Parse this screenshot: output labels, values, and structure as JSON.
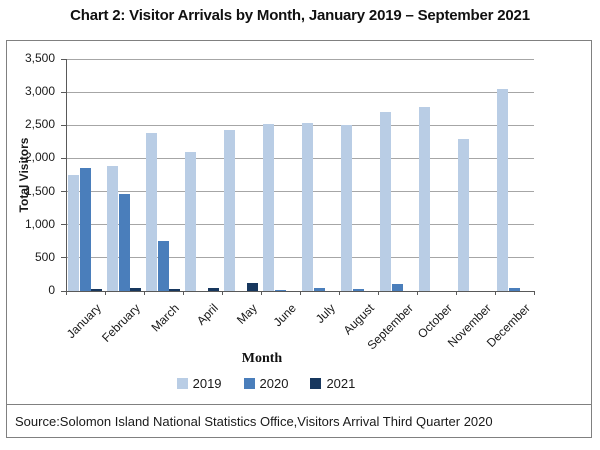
{
  "title": "Chart 2: Visitor Arrivals by Month, January 2019 – September 2021",
  "source": "Source:Solomon Island National Statistics Office,Visitors Arrival Third Quarter 2020",
  "colors": {
    "series_2019": "#b9cde5",
    "series_2020": "#4a7ebb",
    "series_2021": "#17375e",
    "gridline": "#a6a6a6",
    "axis": "#595959",
    "border": "#808080"
  },
  "chart_data": {
    "type": "bar",
    "title": "Chart 2: Visitor Arrivals by Month, January 2019 – September 2021",
    "xlabel": "Month",
    "ylabel": "Total Visitors",
    "ylim": [
      0,
      3500
    ],
    "ytick_step": 500,
    "ytick_labels": [
      "0",
      "500",
      "1,000",
      "1,500",
      "2,000",
      "2,500",
      "3,000",
      "3,500"
    ],
    "grid": true,
    "legend_position": "bottom",
    "categories": [
      "January",
      "February",
      "March",
      "April",
      "May",
      "June",
      "July",
      "August",
      "September",
      "October",
      "November",
      "December"
    ],
    "series": [
      {
        "name": "2019",
        "color": "#b9cde5",
        "values": [
          1750,
          1890,
          2380,
          2100,
          2430,
          2520,
          2540,
          2500,
          2700,
          2770,
          2300,
          3050
        ]
      },
      {
        "name": "2020",
        "color": "#4a7ebb",
        "values": [
          1850,
          1470,
          750,
          0,
          0,
          20,
          45,
          30,
          100,
          0,
          0,
          40
        ]
      },
      {
        "name": "2021",
        "color": "#17375e",
        "values": [
          30,
          45,
          25,
          40,
          120,
          0,
          0,
          0,
          0,
          null,
          null,
          null
        ]
      }
    ]
  }
}
